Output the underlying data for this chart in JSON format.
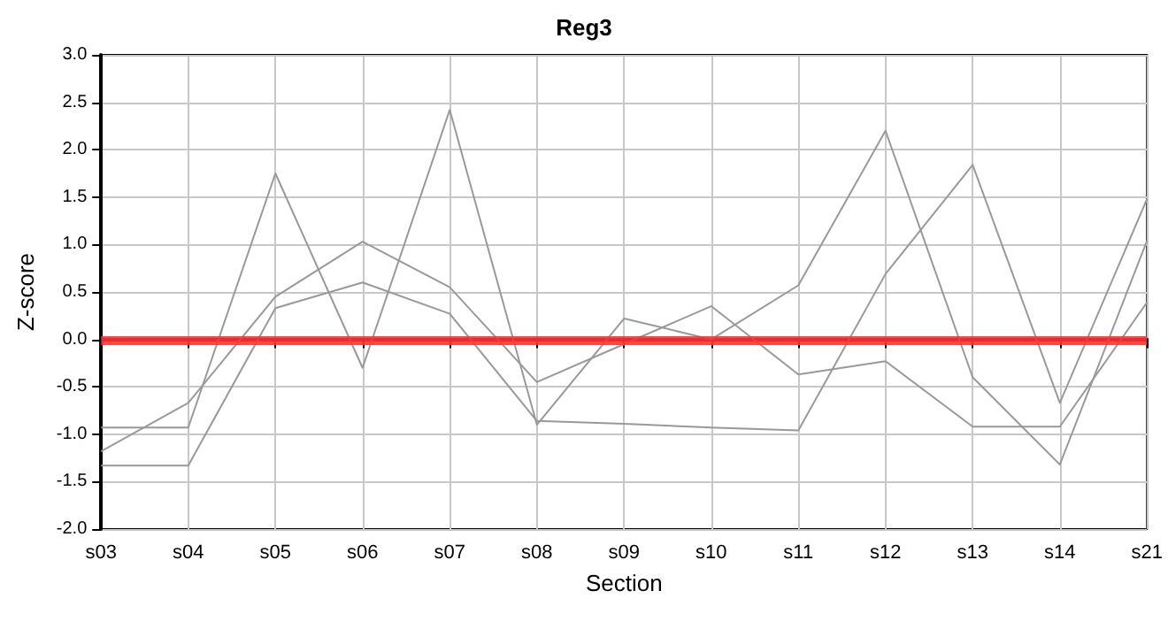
{
  "chart_data": {
    "type": "line",
    "title": "Reg3",
    "xlabel": "Section",
    "ylabel": "Z-score",
    "categories": [
      "s03",
      "s04",
      "s05",
      "s06",
      "s07",
      "s08",
      "s09",
      "s10",
      "s11",
      "s12",
      "s13",
      "s14",
      "s21"
    ],
    "series": [
      {
        "color": "#999999",
        "values": [
          -1.18,
          -0.67,
          0.45,
          1.03,
          0.55,
          -0.45,
          -0.05,
          0.35,
          -0.37,
          -0.23,
          -0.92,
          -0.92,
          0.39
        ]
      },
      {
        "color": "#999999",
        "values": [
          -0.93,
          -0.93,
          1.75,
          -0.3,
          2.42,
          -0.9,
          0.22,
          0.0,
          0.57,
          2.2,
          -0.4,
          -1.32,
          1.04
        ]
      },
      {
        "color": "#999999",
        "values": [
          -1.33,
          -1.33,
          0.33,
          0.6,
          0.27,
          -0.86,
          -0.89,
          -0.93,
          -0.96,
          0.69,
          1.84,
          -0.67,
          1.48
        ]
      }
    ],
    "ylim": [
      -2,
      3
    ],
    "yticks": [
      {
        "value": -2,
        "label": "-2.0"
      },
      {
        "value": -1.5,
        "label": "-1.5"
      },
      {
        "value": -1,
        "label": "-1.0"
      },
      {
        "value": -0.5,
        "label": "-0.5"
      },
      {
        "value": 0,
        "label": "0.0"
      },
      {
        "value": 0.5,
        "label": "0.5"
      },
      {
        "value": 1,
        "label": "1.0"
      },
      {
        "value": 1.5,
        "label": "1.5"
      },
      {
        "value": 2,
        "label": "2.0"
      },
      {
        "value": 2.5,
        "label": "2.5"
      },
      {
        "value": 3,
        "label": "3.0"
      }
    ],
    "ref_lines": [
      {
        "axis": "y",
        "value": 0,
        "color": "#ff3333"
      }
    ],
    "grid": true,
    "marker": "none",
    "line_style": "solid"
  }
}
